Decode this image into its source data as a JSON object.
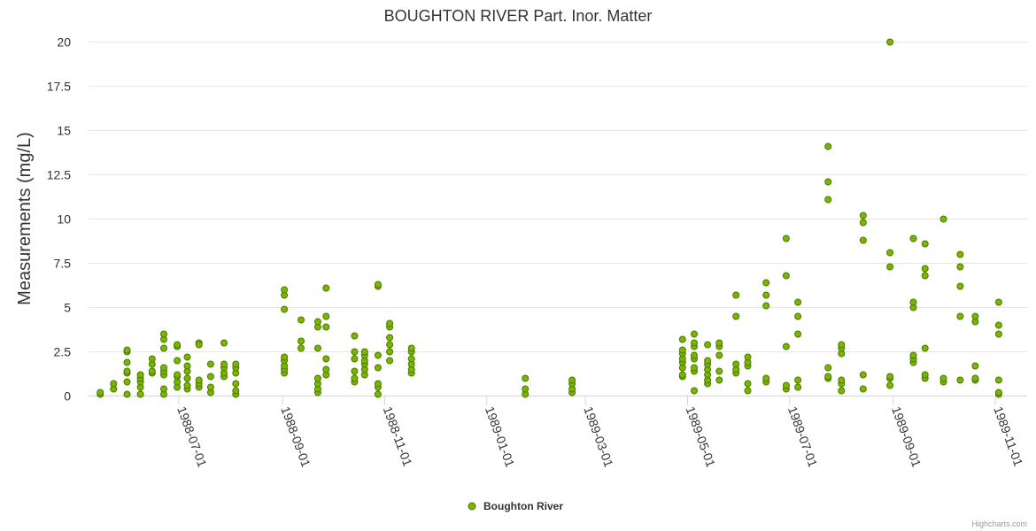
{
  "chart_data": {
    "type": "scatter",
    "title": "BOUGHTON RIVER Part. Inor. Matter",
    "ylabel": "Measurements (mg/L)",
    "xlabel": "",
    "x_type": "date",
    "xlim": [
      "1988-05-08",
      "1989-11-20"
    ],
    "ylim": [
      0,
      20
    ],
    "y_ticks": [
      "0",
      "2.5",
      "5",
      "7.5",
      "10",
      "12.5",
      "15",
      "17.5",
      "20"
    ],
    "x_ticks": [
      "1988-07-01",
      "1988-09-01",
      "1988-11-01",
      "1989-01-01",
      "1989-03-01",
      "1989-05-01",
      "1989-07-01",
      "1989-09-01",
      "1989-11-01"
    ],
    "grid": true,
    "legend_position": "bottom-center",
    "series": [
      {
        "name": "Boughton River",
        "color": "#7cb400",
        "points": [
          [
            "1988-05-15",
            0.1
          ],
          [
            "1988-05-15",
            0.2
          ],
          [
            "1988-05-23",
            0.4
          ],
          [
            "1988-05-23",
            0.7
          ],
          [
            "1988-05-31",
            0.1
          ],
          [
            "1988-05-31",
            0.8
          ],
          [
            "1988-05-31",
            1.3
          ],
          [
            "1988-05-31",
            1.4
          ],
          [
            "1988-05-31",
            1.9
          ],
          [
            "1988-05-31",
            2.5
          ],
          [
            "1988-05-31",
            2.6
          ],
          [
            "1988-06-08",
            0.1
          ],
          [
            "1988-06-08",
            0.5
          ],
          [
            "1988-06-08",
            0.8
          ],
          [
            "1988-06-08",
            1.0
          ],
          [
            "1988-06-08",
            1.2
          ],
          [
            "1988-06-15",
            1.3
          ],
          [
            "1988-06-15",
            1.4
          ],
          [
            "1988-06-15",
            1.8
          ],
          [
            "1988-06-15",
            2.1
          ],
          [
            "1988-06-22",
            0.1
          ],
          [
            "1988-06-22",
            0.4
          ],
          [
            "1988-06-22",
            1.2
          ],
          [
            "1988-06-22",
            1.4
          ],
          [
            "1988-06-22",
            1.6
          ],
          [
            "1988-06-22",
            2.7
          ],
          [
            "1988-06-22",
            3.2
          ],
          [
            "1988-06-22",
            3.5
          ],
          [
            "1988-06-30",
            0.5
          ],
          [
            "1988-06-30",
            0.8
          ],
          [
            "1988-06-30",
            1.1
          ],
          [
            "1988-06-30",
            1.2
          ],
          [
            "1988-06-30",
            2.0
          ],
          [
            "1988-06-30",
            2.8
          ],
          [
            "1988-06-30",
            2.9
          ],
          [
            "1988-07-06",
            0.4
          ],
          [
            "1988-07-06",
            0.6
          ],
          [
            "1988-07-06",
            1.0
          ],
          [
            "1988-07-06",
            1.4
          ],
          [
            "1988-07-06",
            1.7
          ],
          [
            "1988-07-06",
            2.2
          ],
          [
            "1988-07-13",
            0.5
          ],
          [
            "1988-07-13",
            0.7
          ],
          [
            "1988-07-13",
            0.9
          ],
          [
            "1988-07-13",
            3.0
          ],
          [
            "1988-07-13",
            2.9
          ],
          [
            "1988-07-20",
            0.2
          ],
          [
            "1988-07-20",
            0.5
          ],
          [
            "1988-07-20",
            1.1
          ],
          [
            "1988-07-20",
            1.8
          ],
          [
            "1988-07-28",
            1.1
          ],
          [
            "1988-07-28",
            1.3
          ],
          [
            "1988-07-28",
            1.6
          ],
          [
            "1988-07-28",
            1.8
          ],
          [
            "1988-07-28",
            3.0
          ],
          [
            "1988-08-04",
            0.1
          ],
          [
            "1988-08-04",
            0.3
          ],
          [
            "1988-08-04",
            0.7
          ],
          [
            "1988-08-04",
            1.3
          ],
          [
            "1988-08-04",
            1.6
          ],
          [
            "1988-08-04",
            1.8
          ],
          [
            "1988-09-02",
            1.3
          ],
          [
            "1988-09-02",
            1.5
          ],
          [
            "1988-09-02",
            1.7
          ],
          [
            "1988-09-02",
            2.0
          ],
          [
            "1988-09-02",
            2.2
          ],
          [
            "1988-09-02",
            4.9
          ],
          [
            "1988-09-02",
            5.7
          ],
          [
            "1988-09-02",
            6.0
          ],
          [
            "1988-09-12",
            2.7
          ],
          [
            "1988-09-12",
            3.1
          ],
          [
            "1988-09-12",
            4.3
          ],
          [
            "1988-09-22",
            0.2
          ],
          [
            "1988-09-22",
            0.4
          ],
          [
            "1988-09-22",
            0.7
          ],
          [
            "1988-09-22",
            1.0
          ],
          [
            "1988-09-22",
            2.7
          ],
          [
            "1988-09-22",
            3.9
          ],
          [
            "1988-09-22",
            4.2
          ],
          [
            "1988-09-27",
            1.2
          ],
          [
            "1988-09-27",
            1.5
          ],
          [
            "1988-09-27",
            2.1
          ],
          [
            "1988-09-27",
            3.9
          ],
          [
            "1988-09-27",
            4.5
          ],
          [
            "1988-09-27",
            6.1
          ],
          [
            "1988-10-14",
            0.8
          ],
          [
            "1988-10-14",
            1.0
          ],
          [
            "1988-10-14",
            1.4
          ],
          [
            "1988-10-14",
            2.1
          ],
          [
            "1988-10-14",
            2.5
          ],
          [
            "1988-10-14",
            3.4
          ],
          [
            "1988-10-20",
            1.2
          ],
          [
            "1988-10-20",
            1.5
          ],
          [
            "1988-10-20",
            1.8
          ],
          [
            "1988-10-20",
            2.0
          ],
          [
            "1988-10-20",
            2.3
          ],
          [
            "1988-10-20",
            2.5
          ],
          [
            "1988-10-28",
            0.1
          ],
          [
            "1988-10-28",
            0.5
          ],
          [
            "1988-10-28",
            0.7
          ],
          [
            "1988-10-28",
            1.6
          ],
          [
            "1988-10-28",
            2.3
          ],
          [
            "1988-10-28",
            6.2
          ],
          [
            "1988-10-28",
            6.3
          ],
          [
            "1988-11-04",
            2.0
          ],
          [
            "1988-11-04",
            2.5
          ],
          [
            "1988-11-04",
            2.9
          ],
          [
            "1988-11-04",
            3.3
          ],
          [
            "1988-11-04",
            3.9
          ],
          [
            "1988-11-04",
            4.1
          ],
          [
            "1988-11-17",
            1.3
          ],
          [
            "1988-11-17",
            1.5
          ],
          [
            "1988-11-17",
            1.8
          ],
          [
            "1988-11-17",
            2.1
          ],
          [
            "1988-11-17",
            2.5
          ],
          [
            "1988-11-17",
            2.7
          ],
          [
            "1989-01-24",
            0.1
          ],
          [
            "1989-01-24",
            0.4
          ],
          [
            "1989-01-24",
            1.0
          ],
          [
            "1989-02-21",
            0.2
          ],
          [
            "1989-02-21",
            0.4
          ],
          [
            "1989-02-21",
            0.7
          ],
          [
            "1989-02-21",
            0.9
          ],
          [
            "1989-04-28",
            1.1
          ],
          [
            "1989-04-28",
            1.2
          ],
          [
            "1989-04-28",
            1.6
          ],
          [
            "1989-04-28",
            1.9
          ],
          [
            "1989-04-28",
            2.1
          ],
          [
            "1989-04-28",
            2.4
          ],
          [
            "1989-04-28",
            2.6
          ],
          [
            "1989-04-28",
            3.2
          ],
          [
            "1989-05-05",
            0.3
          ],
          [
            "1989-05-05",
            1.4
          ],
          [
            "1989-05-05",
            1.6
          ],
          [
            "1989-05-05",
            2.1
          ],
          [
            "1989-05-05",
            2.3
          ],
          [
            "1989-05-05",
            2.8
          ],
          [
            "1989-05-05",
            3.0
          ],
          [
            "1989-05-05",
            3.5
          ],
          [
            "1989-05-13",
            0.7
          ],
          [
            "1989-05-13",
            0.9
          ],
          [
            "1989-05-13",
            1.2
          ],
          [
            "1989-05-13",
            1.5
          ],
          [
            "1989-05-13",
            1.8
          ],
          [
            "1989-05-13",
            2.0
          ],
          [
            "1989-05-13",
            2.9
          ],
          [
            "1989-05-20",
            0.9
          ],
          [
            "1989-05-20",
            1.4
          ],
          [
            "1989-05-20",
            2.3
          ],
          [
            "1989-05-20",
            2.8
          ],
          [
            "1989-05-20",
            3.0
          ],
          [
            "1989-05-30",
            1.3
          ],
          [
            "1989-05-30",
            1.5
          ],
          [
            "1989-05-30",
            1.8
          ],
          [
            "1989-05-30",
            4.5
          ],
          [
            "1989-05-30",
            5.7
          ],
          [
            "1989-06-06",
            0.3
          ],
          [
            "1989-06-06",
            0.7
          ],
          [
            "1989-06-06",
            1.7
          ],
          [
            "1989-06-06",
            1.9
          ],
          [
            "1989-06-06",
            2.2
          ],
          [
            "1989-06-17",
            0.8
          ],
          [
            "1989-06-17",
            1.0
          ],
          [
            "1989-06-17",
            5.1
          ],
          [
            "1989-06-17",
            5.7
          ],
          [
            "1989-06-17",
            6.4
          ],
          [
            "1989-06-29",
            0.4
          ],
          [
            "1989-06-29",
            0.6
          ],
          [
            "1989-06-29",
            2.8
          ],
          [
            "1989-06-29",
            6.8
          ],
          [
            "1989-06-29",
            8.9
          ],
          [
            "1989-07-06",
            0.5
          ],
          [
            "1989-07-06",
            0.9
          ],
          [
            "1989-07-06",
            3.5
          ],
          [
            "1989-07-06",
            4.5
          ],
          [
            "1989-07-06",
            5.3
          ],
          [
            "1989-07-24",
            1.0
          ],
          [
            "1989-07-24",
            1.1
          ],
          [
            "1989-07-24",
            1.6
          ],
          [
            "1989-07-24",
            11.1
          ],
          [
            "1989-07-24",
            12.1
          ],
          [
            "1989-07-24",
            14.1
          ],
          [
            "1989-08-01",
            0.3
          ],
          [
            "1989-08-01",
            0.7
          ],
          [
            "1989-08-01",
            0.9
          ],
          [
            "1989-08-01",
            2.4
          ],
          [
            "1989-08-01",
            2.7
          ],
          [
            "1989-08-01",
            2.9
          ],
          [
            "1989-08-14",
            0.4
          ],
          [
            "1989-08-14",
            1.2
          ],
          [
            "1989-08-14",
            8.8
          ],
          [
            "1989-08-14",
            9.8
          ],
          [
            "1989-08-14",
            10.2
          ],
          [
            "1989-08-30",
            0.6
          ],
          [
            "1989-08-30",
            1.0
          ],
          [
            "1989-08-30",
            1.1
          ],
          [
            "1989-08-30",
            7.3
          ],
          [
            "1989-08-30",
            8.1
          ],
          [
            "1989-08-30",
            20.0
          ],
          [
            "1989-09-13",
            1.9
          ],
          [
            "1989-09-13",
            2.1
          ],
          [
            "1989-09-13",
            2.3
          ],
          [
            "1989-09-13",
            5.0
          ],
          [
            "1989-09-13",
            5.3
          ],
          [
            "1989-09-13",
            8.9
          ],
          [
            "1989-09-20",
            1.0
          ],
          [
            "1989-09-20",
            1.2
          ],
          [
            "1989-09-20",
            2.7
          ],
          [
            "1989-09-20",
            6.8
          ],
          [
            "1989-09-20",
            7.2
          ],
          [
            "1989-09-20",
            8.6
          ],
          [
            "1989-10-01",
            0.8
          ],
          [
            "1989-10-01",
            1.0
          ],
          [
            "1989-10-01",
            10.0
          ],
          [
            "1989-10-11",
            0.9
          ],
          [
            "1989-10-11",
            4.5
          ],
          [
            "1989-10-11",
            6.2
          ],
          [
            "1989-10-11",
            7.3
          ],
          [
            "1989-10-11",
            8.0
          ],
          [
            "1989-10-20",
            0.9
          ],
          [
            "1989-10-20",
            1.0
          ],
          [
            "1989-10-20",
            1.7
          ],
          [
            "1989-10-20",
            4.2
          ],
          [
            "1989-10-20",
            4.5
          ],
          [
            "1989-11-03",
            0.1
          ],
          [
            "1989-11-03",
            0.2
          ],
          [
            "1989-11-03",
            0.9
          ],
          [
            "1989-11-03",
            3.5
          ],
          [
            "1989-11-03",
            4.0
          ],
          [
            "1989-11-03",
            5.3
          ]
        ]
      }
    ]
  },
  "credits": "Highcharts.com"
}
